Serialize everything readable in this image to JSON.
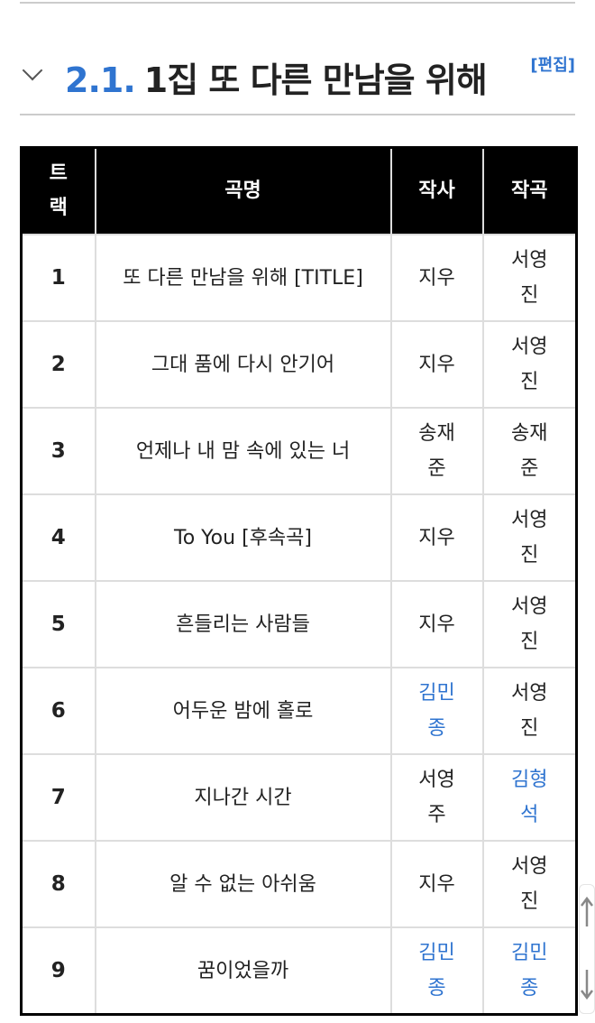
{
  "section": {
    "number": "2.1.",
    "title": "1집 또 다른 만남을 위해",
    "edit_label": "[편집]"
  },
  "table": {
    "headers": [
      "트랙",
      "곡명",
      "작사",
      "작곡"
    ],
    "rows": [
      {
        "track": "1",
        "title": "또 다른 만남을 위해 [TITLE]",
        "lyricist": "지우",
        "composer": "서영진",
        "lyricist_link": false,
        "composer_link": false
      },
      {
        "track": "2",
        "title": "그대 품에 다시 안기어",
        "lyricist": "지우",
        "composer": "서영진",
        "lyricist_link": false,
        "composer_link": false
      },
      {
        "track": "3",
        "title": "언제나 내 맘 속에 있는 너",
        "lyricist": "송재준",
        "composer": "송재준",
        "lyricist_link": false,
        "composer_link": false
      },
      {
        "track": "4",
        "title": "To You [후속곡]",
        "lyricist": "지우",
        "composer": "서영진",
        "lyricist_link": false,
        "composer_link": false
      },
      {
        "track": "5",
        "title": "흔들리는 사람들",
        "lyricist": "지우",
        "composer": "서영진",
        "lyricist_link": false,
        "composer_link": false
      },
      {
        "track": "6",
        "title": "어두운 밤에 홀로",
        "lyricist": "김민종",
        "composer": "서영진",
        "lyricist_link": true,
        "composer_link": false
      },
      {
        "track": "7",
        "title": "지나간 시간",
        "lyricist": "서영주",
        "composer": "김형석",
        "lyricist_link": false,
        "composer_link": true
      },
      {
        "track": "8",
        "title": "알 수 없는 아쉬움",
        "lyricist": "지우",
        "composer": "서영진",
        "lyricist_link": false,
        "composer_link": false
      },
      {
        "track": "9",
        "title": "꿈이었을까",
        "lyricist": "김민종",
        "composer": "김민종",
        "lyricist_link": true,
        "composer_link": true
      }
    ]
  },
  "colors": {
    "link": "#2f74d0",
    "header_bg": "#000000"
  },
  "scroll_icons": [
    "arrow-up-icon",
    "arrow-down-icon"
  ]
}
